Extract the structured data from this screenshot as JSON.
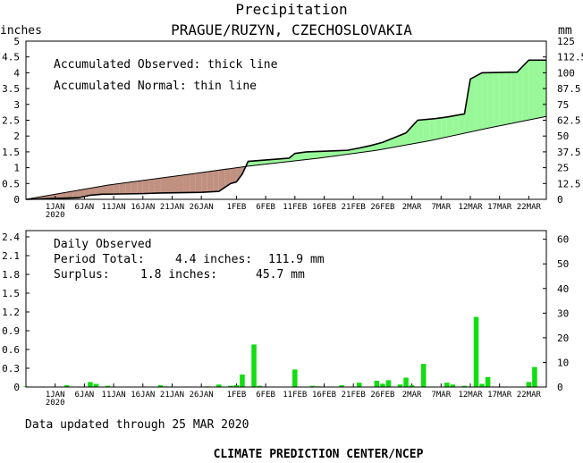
{
  "header": {
    "title": "Precipitation",
    "subtitle": "PRAGUE/RUZYN, CZECHOSLOVAKIA",
    "left_unit": "inches",
    "right_unit": "mm"
  },
  "legend": {
    "line1": "Accumulated Observed: thick line",
    "line2": "Accumulated Normal: thin line"
  },
  "stats": {
    "heading": "Daily Observed",
    "total_label": "Period Total:",
    "total_in": "4.4 inches:",
    "total_mm": "111.9 mm",
    "surplus_label": "Surplus:",
    "surplus_in": "1.8 inches:",
    "surplus_mm": "45.7 mm"
  },
  "footer": {
    "updated": "Data updated through 25 MAR 2020",
    "credit": "CLIMATE PREDICTION CENTER/NCEP"
  },
  "colors": {
    "surplus": "#98f898",
    "deficit": "#c09080",
    "bars": "#11dd11",
    "line": "#000000"
  },
  "chart_data": [
    {
      "type": "area",
      "title": "Precipitation",
      "subtitle": "PRAGUE/RUZYN, CZECHOSLOVAKIA",
      "ylabel": "inches",
      "y2label": "mm",
      "x_start": "2019-12-27",
      "x_end": "2020-03-25",
      "ylim": [
        0,
        5
      ],
      "y_ticks": [
        "0",
        "0.5",
        "1",
        "1.5",
        "2",
        "2.5",
        "3",
        "3.5",
        "4",
        "4.5",
        "5"
      ],
      "y2_ticks": [
        "0",
        "12.5",
        "25",
        "37.5",
        "50",
        "62.5",
        "75",
        "87.5",
        "100",
        "112.5",
        "125"
      ],
      "x_tick_labels": [
        "1JAN",
        "6JAN",
        "11JAN",
        "16JAN",
        "21JAN",
        "26JAN",
        "1FEB",
        "6FEB",
        "11FEB",
        "16FEB",
        "21FEB",
        "26FEB",
        "2MAR",
        "7MAR",
        "12MAR",
        "17MAR",
        "22MAR"
      ],
      "x_year_label": "2020",
      "series": [
        {
          "name": "Accumulated Observed",
          "points": [
            [
              "2019-12-27",
              0
            ],
            [
              "2019-12-29",
              0.01
            ],
            [
              "2020-01-01",
              0.03
            ],
            [
              "2020-01-05",
              0.05
            ],
            [
              "2020-01-07",
              0.13
            ],
            [
              "2020-01-09",
              0.16
            ],
            [
              "2020-01-16",
              0.18
            ],
            [
              "2020-01-19",
              0.2
            ],
            [
              "2020-01-26",
              0.22
            ],
            [
              "2020-01-29",
              0.25
            ],
            [
              "2020-01-31",
              0.5
            ],
            [
              "2020-02-01",
              0.55
            ],
            [
              "2020-02-02",
              0.8
            ],
            [
              "2020-02-03",
              1.2
            ],
            [
              "2020-02-10",
              1.3
            ],
            [
              "2020-02-11",
              1.45
            ],
            [
              "2020-02-13",
              1.5
            ],
            [
              "2020-02-20",
              1.55
            ],
            [
              "2020-02-22",
              1.62
            ],
            [
              "2020-02-24",
              1.7
            ],
            [
              "2020-02-26",
              1.8
            ],
            [
              "2020-02-28",
              1.95
            ],
            [
              "2020-03-01",
              2.1
            ],
            [
              "2020-03-03",
              2.5
            ],
            [
              "2020-03-06",
              2.55
            ],
            [
              "2020-03-08",
              2.6
            ],
            [
              "2020-03-11",
              2.7
            ],
            [
              "2020-03-12",
              3.8
            ],
            [
              "2020-03-14",
              4.0
            ],
            [
              "2020-03-20",
              4.02
            ],
            [
              "2020-03-22",
              4.4
            ],
            [
              "2020-03-25",
              4.4
            ]
          ]
        },
        {
          "name": "Accumulated Normal",
          "points": [
            [
              "2019-12-27",
              0
            ],
            [
              "2020-01-10",
              0.45
            ],
            [
              "2020-01-25",
              0.82
            ],
            [
              "2020-02-03",
              1.05
            ],
            [
              "2020-02-15",
              1.3
            ],
            [
              "2020-02-25",
              1.55
            ],
            [
              "2020-03-05",
              1.85
            ],
            [
              "2020-03-15",
              2.25
            ],
            [
              "2020-03-25",
              2.62
            ]
          ]
        }
      ]
    },
    {
      "type": "bar",
      "title": "Daily Observed",
      "ylim": [
        0,
        2.5
      ],
      "y_ticks": [
        "0",
        "0.3",
        "0.6",
        "0.9",
        "1.2",
        "1.5",
        "1.8",
        "2.1",
        "2.4"
      ],
      "y2_ticks": [
        "0",
        "10",
        "20",
        "30",
        "40",
        "50",
        "60"
      ],
      "series": [
        {
          "name": "Daily Observed",
          "points": [
            [
              "2019-12-27",
              0.01
            ],
            [
              "2020-01-03",
              0.03
            ],
            [
              "2020-01-07",
              0.08
            ],
            [
              "2020-01-08",
              0.05
            ],
            [
              "2020-01-10",
              0.02
            ],
            [
              "2020-01-19",
              0.03
            ],
            [
              "2020-01-20",
              0.01
            ],
            [
              "2020-01-27",
              0.01
            ],
            [
              "2020-01-29",
              0.04
            ],
            [
              "2020-01-31",
              0.02
            ],
            [
              "2020-02-01",
              0.03
            ],
            [
              "2020-02-02",
              0.2
            ],
            [
              "2020-02-04",
              0.68
            ],
            [
              "2020-02-05",
              0.02
            ],
            [
              "2020-02-11",
              0.28
            ],
            [
              "2020-02-14",
              0.02
            ],
            [
              "2020-02-15",
              0.01
            ],
            [
              "2020-02-19",
              0.03
            ],
            [
              "2020-02-22",
              0.07
            ],
            [
              "2020-02-25",
              0.1
            ],
            [
              "2020-02-26",
              0.05
            ],
            [
              "2020-02-27",
              0.11
            ],
            [
              "2020-02-29",
              0.04
            ],
            [
              "2020-03-01",
              0.15
            ],
            [
              "2020-03-02",
              0.03
            ],
            [
              "2020-03-04",
              0.37
            ],
            [
              "2020-03-08",
              0.07
            ],
            [
              "2020-03-09",
              0.04
            ],
            [
              "2020-03-11",
              0.02
            ],
            [
              "2020-03-13",
              1.12
            ],
            [
              "2020-03-14",
              0.05
            ],
            [
              "2020-03-15",
              0.16
            ],
            [
              "2020-03-22",
              0.08
            ],
            [
              "2020-03-23",
              0.32
            ]
          ]
        }
      ]
    }
  ]
}
